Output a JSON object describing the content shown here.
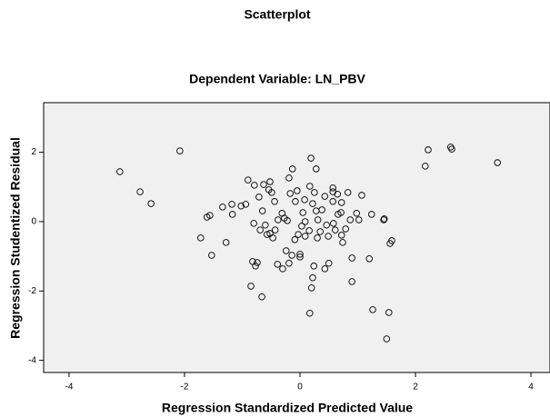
{
  "chart_data": {
    "type": "scatter",
    "title": "Scatterplot",
    "subtitle": "Dependent Variable: LN_PBV",
    "x_label": "Regression Standardized Predicted Value",
    "y_label": "Regression Studentized Residual",
    "color": "#000000",
    "background": "#f0f0f0",
    "xlim": [
      -4.44,
      4.33
    ],
    "ylim": [
      -4.35,
      3.43
    ],
    "xticks": [
      -4,
      -2,
      0,
      2,
      4
    ],
    "yticks": [
      -4,
      -2,
      0,
      2
    ],
    "x": [
      -3.12,
      -2.77,
      -2.58,
      -2.08,
      -1.72,
      -1.61,
      -1.56,
      -1.53,
      -1.34,
      -1.28,
      -1.17,
      -1.18,
      -1.02,
      -0.94,
      -0.9,
      -0.82,
      -0.77,
      -0.74,
      -0.85,
      -0.66,
      -0.79,
      -0.63,
      -0.52,
      -0.71,
      -0.49,
      -0.54,
      -0.44,
      -0.65,
      -0.8,
      -0.69,
      -0.6,
      -0.52,
      -0.47,
      -0.57,
      -0.43,
      -0.38,
      -0.31,
      -0.27,
      -0.22,
      -0.39,
      -0.3,
      -0.19,
      -0.24,
      -0.14,
      -0.09,
      -0.03,
      0,
      0,
      -0.19,
      -0.17,
      -0.13,
      -0.08,
      -0.05,
      0.05,
      0.03,
      0.09,
      0.08,
      0.09,
      0.16,
      0.19,
      0.17,
      0.25,
      0.28,
      0.22,
      0.28,
      0.31,
      0.3,
      0.24,
      0.22,
      0.2,
      0.17,
      0.35,
      0.38,
      0.43,
      0.46,
      0.49,
      0.5,
      0.43,
      0.57,
      0.57,
      0.58,
      0.61,
      0.66,
      0.72,
      0.57,
      0.65,
      0.71,
      0.72,
      0.74,
      0.79,
      0.83,
      0.87,
      0.9,
      0.9,
      0.98,
      1.02,
      1.07,
      1.2,
      1.24,
      1.26,
      1.45,
      1.46,
      1.5,
      1.54,
      1.56,
      1.59,
      2.17,
      2.22,
      2.61,
      2.63,
      3.42
    ],
    "values": [
      1.44,
      0.86,
      0.52,
      2.04,
      -0.47,
      0.13,
      0.18,
      -0.97,
      0.42,
      -0.6,
      0.21,
      0.5,
      0.45,
      0.5,
      1.2,
      -1.15,
      -1.28,
      -1.18,
      -1.86,
      -2.17,
      1.05,
      1.07,
      1.15,
      0.71,
      0.84,
      0.92,
      0.58,
      0.31,
      -0.05,
      -0.24,
      -0.1,
      -0.34,
      -0.47,
      -0.37,
      -0.24,
      0.05,
      0.24,
      0.1,
      0.03,
      -1.23,
      -1.36,
      -1.2,
      -0.84,
      -0.97,
      -0.52,
      -0.37,
      -1.02,
      -0.94,
      1.26,
      0.81,
      1.52,
      0.58,
      0.89,
      0.26,
      -0.13,
      0,
      0.63,
      -0.42,
      -0.26,
      1.83,
      1.02,
      0.84,
      1.52,
      0.52,
      0.31,
      0.05,
      -0.47,
      -1.28,
      -1.62,
      -1.91,
      -2.64,
      -0.29,
      0.34,
      0.73,
      -0.1,
      -0.42,
      -1.2,
      -1.36,
      0.58,
      0.97,
      -0.05,
      -0.24,
      0.21,
      0.55,
      0.86,
      0.79,
      0.26,
      -0.39,
      -0.6,
      -0.21,
      0.84,
      0.05,
      -1.05,
      -1.73,
      0.24,
      0.05,
      0.76,
      -1.07,
      0.21,
      -2.54,
      0.05,
      0.08,
      -3.38,
      -2.62,
      -0.63,
      -0.55,
      1.6,
      2.07,
      2.15,
      2.09,
      1.7
    ]
  }
}
